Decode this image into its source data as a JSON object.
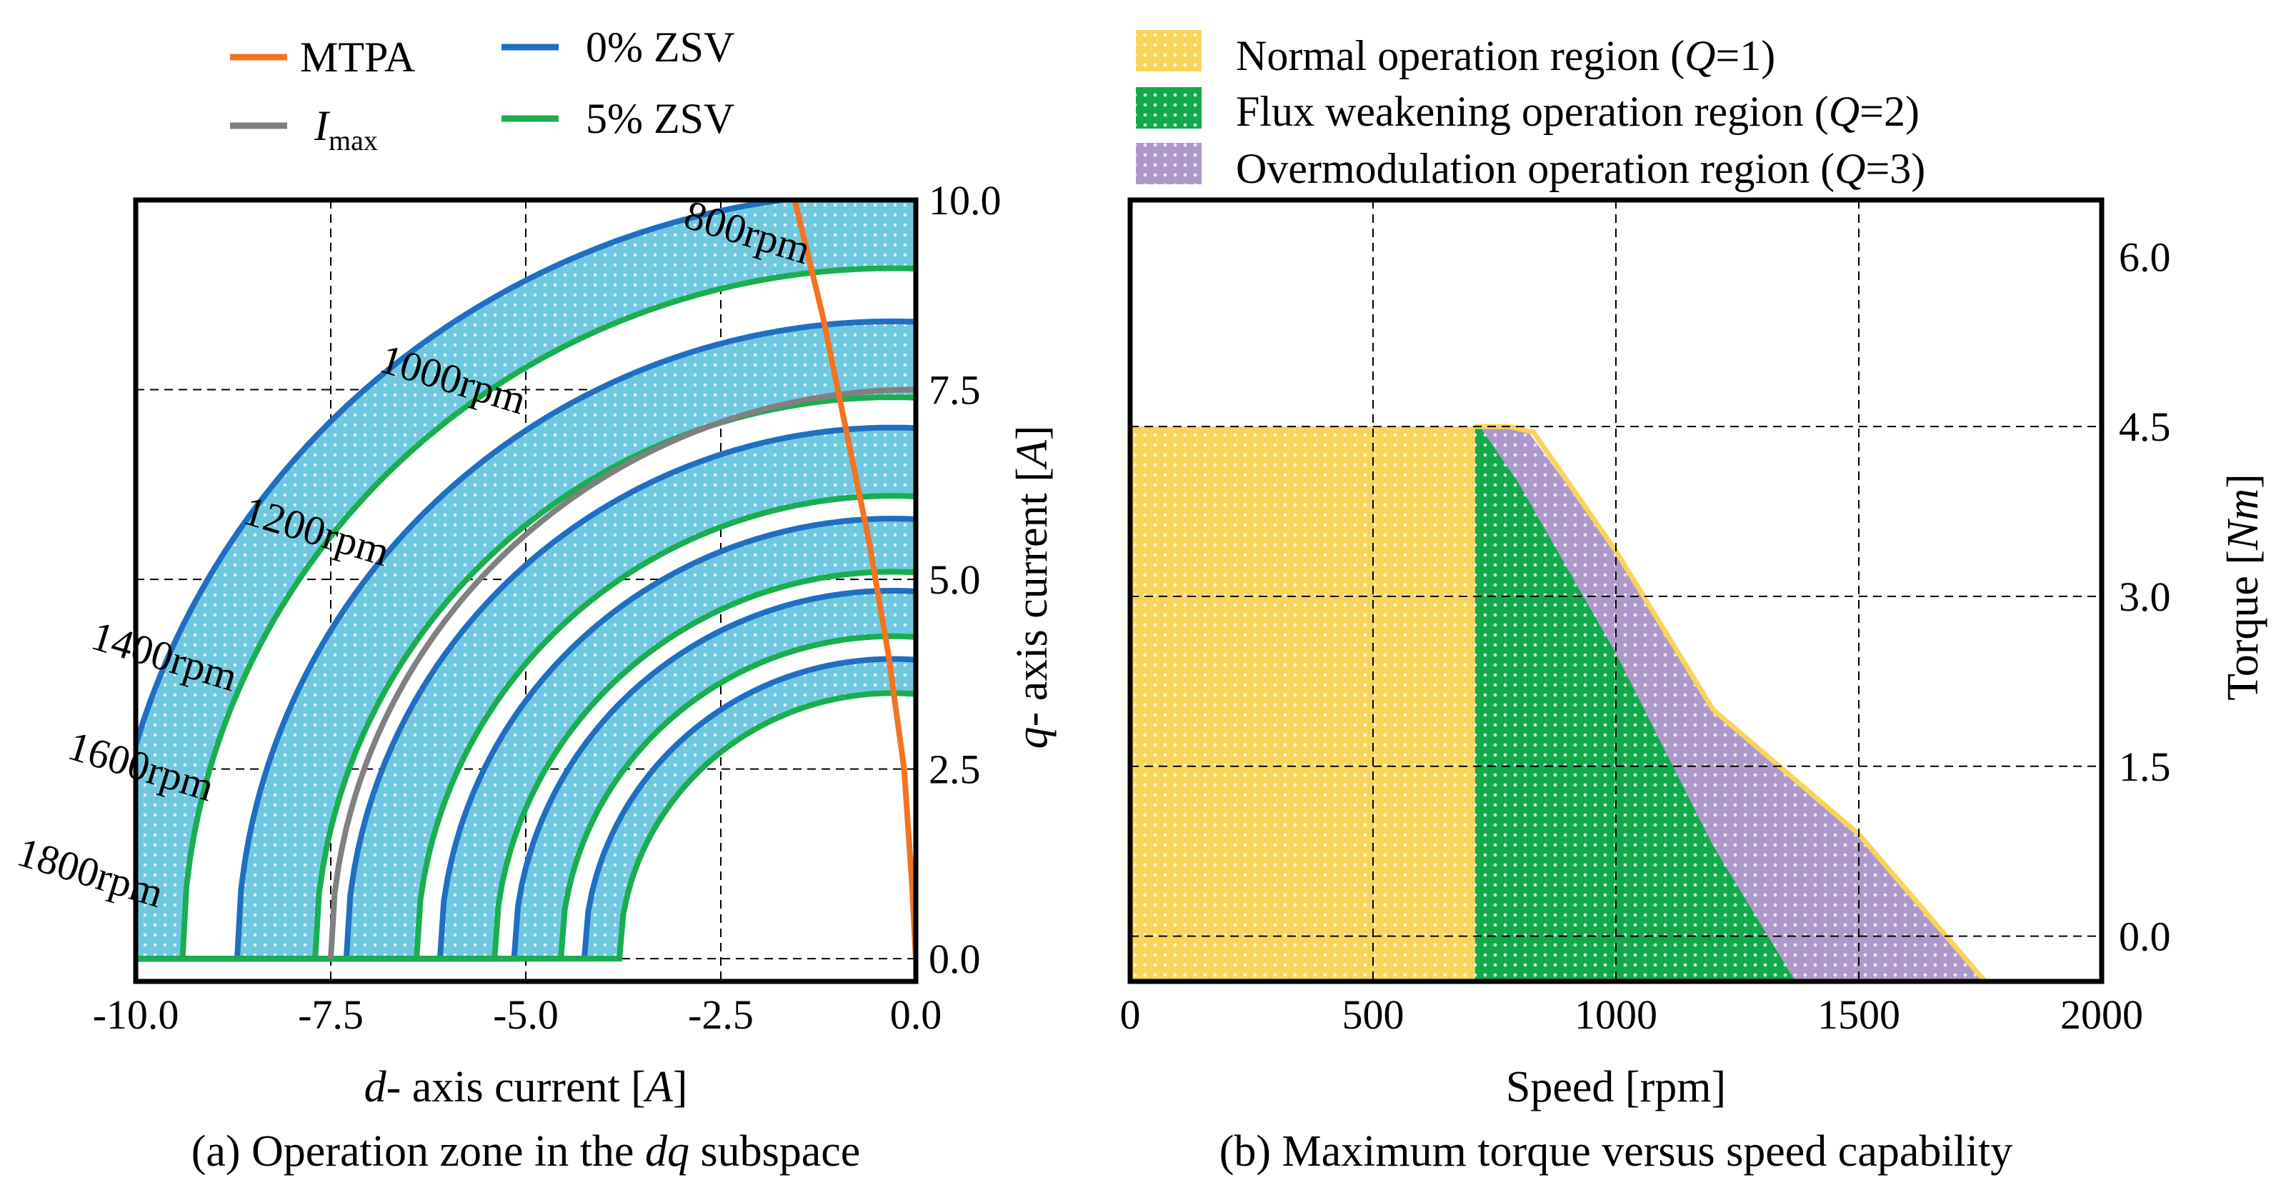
{
  "chart_data": [
    {
      "id": "a",
      "type": "line",
      "caption": {
        "prefix": "(a) Operation zone in the ",
        "italic": "dq",
        "suffix": " subspace"
      },
      "xlabel": {
        "italic": "d",
        "text": "- axis current [",
        "unit": "A",
        "close": "]"
      },
      "ylabel": {
        "italic": "q",
        "text": "- axis current [",
        "unit": "A",
        "close": "]"
      },
      "xlim": [
        -10,
        0
      ],
      "ylim": [
        -0.3,
        10
      ],
      "xticks": [
        "-10.0",
        "-7.5",
        "-5.0",
        "-2.5",
        "0.0"
      ],
      "xtick_values": [
        -10,
        -7.5,
        -5,
        -2.5,
        0
      ],
      "yticks": [
        "10.0",
        "7.5",
        "5.0",
        "2.5",
        "0.0"
      ],
      "ytick_values": [
        10,
        7.5,
        5,
        2.5,
        0
      ],
      "grid": true,
      "legend": [
        {
          "name": "MTPA",
          "color": "#F37321"
        },
        {
          "name": "I",
          "sub": "max",
          "italic": true,
          "color": "#808080"
        },
        {
          "name": "0% ZSV",
          "color": "#1E6FC2"
        },
        {
          "name": "5% ZSV",
          "color": "#1AAE4E"
        }
      ],
      "imax_radius": 7.5,
      "imax_center_x": 0,
      "mtpa": {
        "x": [
          0,
          -0.05,
          -0.15,
          -0.35,
          -0.6,
          -0.9,
          -1.2,
          -1.6
        ],
        "y": [
          0,
          1.0,
          2.5,
          4.0,
          5.5,
          7.0,
          8.5,
          10.2
        ]
      },
      "voltage_limits": [
        {
          "speed": "800rpm",
          "r_outer": 10.1,
          "r_inner": 9.1,
          "label_at": [
            -3.0,
            9.65
          ],
          "label_rot": 17
        },
        {
          "speed": "1000rpm",
          "r_outer": 8.4,
          "r_inner": 7.4,
          "label_at": [
            -6.9,
            7.75
          ],
          "label_rot": 17
        },
        {
          "speed": "1200rpm",
          "r_outer": 7.0,
          "r_inner": 6.1,
          "label_at": [
            -8.65,
            5.75
          ],
          "label_rot": 17
        },
        {
          "speed": "1400rpm",
          "r_outer": 5.8,
          "r_inner": 5.1,
          "label_at": [
            -10.6,
            4.1
          ],
          "label_rot": 17
        },
        {
          "speed": "1600rpm",
          "r_outer": 4.85,
          "r_inner": 4.25,
          "label_at": [
            -10.9,
            2.65
          ],
          "label_rot": 17
        },
        {
          "speed": "1800rpm",
          "r_outer": 3.95,
          "r_inner": 3.5,
          "label_at": [
            -11.55,
            1.25
          ],
          "label_rot": 17
        }
      ],
      "band_center_x": -0.3,
      "band_color": "#70C8DF",
      "zsv0_color": "#1E6FC2",
      "zsv5_color": "#1AAE4E",
      "mtpa_color": "#F37321",
      "imax_color": "#808080"
    },
    {
      "id": "b",
      "type": "area",
      "caption": "(b) Maximum torque versus speed capability",
      "xlabel": "Speed [rpm]",
      "ylabel": {
        "text": "Torque [",
        "unit": "Nm",
        "close": "]"
      },
      "xlim": [
        0,
        2000
      ],
      "ylim": [
        -0.4,
        6.5
      ],
      "xticks": [
        "0",
        "500",
        "1000",
        "1500",
        "2000"
      ],
      "xtick_values": [
        0,
        500,
        1000,
        1500,
        2000
      ],
      "yticks": [
        "6.0",
        "4.5",
        "3.0",
        "1.5",
        "0.0"
      ],
      "ytick_values": [
        6.0,
        4.5,
        3.0,
        1.5,
        0.0
      ],
      "grid": true,
      "legend": [
        {
          "label": "Normal operation region (",
          "q": "Q",
          "tail": "=1)",
          "color": "#F9D45A"
        },
        {
          "label": "Flux weakening operation region (",
          "q": "Q",
          "tail": "=2)",
          "color": "#12A94A"
        },
        {
          "label": "Overmodulation operation region (",
          "q": "Q",
          "tail": "=3)",
          "color": "#AE97CA"
        }
      ],
      "regions": [
        {
          "name": "normal",
          "Q": 1,
          "color": "#F9D45A",
          "x": [
            0,
            710,
            710,
            0
          ],
          "y": [
            4.5,
            4.5,
            -0.4,
            -0.4
          ]
        },
        {
          "name": "flux_weakening",
          "Q": 2,
          "color": "#12A94A",
          "x": [
            710,
            720,
            800,
            1000,
            1200,
            1370,
            1370,
            710
          ],
          "y": [
            4.5,
            4.5,
            4.0,
            2.5,
            0.8,
            -0.4,
            -0.4,
            -0.4
          ]
        },
        {
          "name": "overmodulation",
          "Q": 3,
          "color": "#AE97CA",
          "x": [
            720,
            780,
            820,
            1000,
            1200,
            1500,
            1760,
            1370,
            1200,
            1000,
            800
          ],
          "y": [
            4.5,
            4.5,
            4.45,
            3.4,
            2.0,
            0.9,
            -0.4,
            -0.4,
            0.8,
            2.5,
            4.0
          ]
        }
      ],
      "envelope": {
        "x": [
          710,
          780,
          830,
          1000,
          1200,
          1500,
          1760
        ],
        "y": [
          4.5,
          4.5,
          4.45,
          3.4,
          2.0,
          0.9,
          -0.4
        ],
        "color": "#F9D45A"
      }
    }
  ]
}
